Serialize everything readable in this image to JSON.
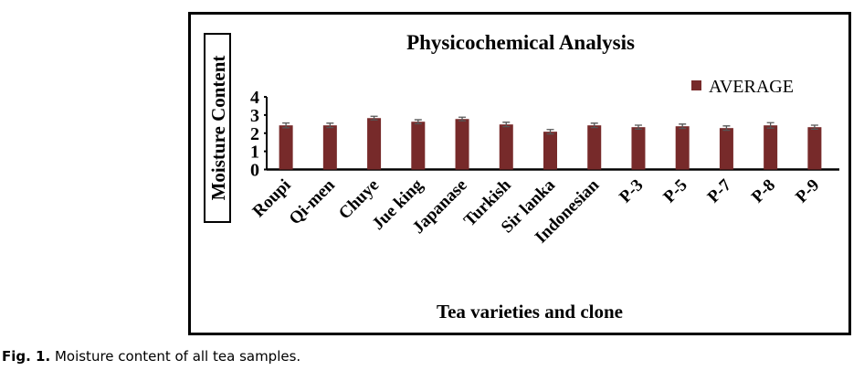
{
  "caption": {
    "label": "Fig. 1.",
    "text": " Moisture content of all tea samples."
  },
  "chart_data": {
    "type": "bar",
    "title": "Physicochemical Analysis",
    "xlabel": "Tea varieties and clone",
    "ylabel": "Moisture Content",
    "ylim": [
      0,
      4
    ],
    "yticks": [
      0,
      1,
      2,
      3,
      4
    ],
    "grid": false,
    "legend": "top-right",
    "bar_color": "#772a2a",
    "categories": [
      "Roupi",
      "Qi-men",
      "Chuye",
      "Jue king",
      "Japanase",
      "Turkish",
      "Sir lanka",
      "Indonesian",
      "P-3",
      "P-5",
      "P-7",
      "P-8",
      "P-9"
    ],
    "series": [
      {
        "name": "AVERAGE",
        "values": [
          2.43,
          2.43,
          2.83,
          2.63,
          2.78,
          2.48,
          2.08,
          2.43,
          2.33,
          2.38,
          2.28,
          2.43,
          2.33
        ],
        "errors": [
          0.13,
          0.12,
          0.1,
          0.11,
          0.1,
          0.12,
          0.12,
          0.12,
          0.11,
          0.12,
          0.12,
          0.15,
          0.11
        ]
      }
    ]
  }
}
